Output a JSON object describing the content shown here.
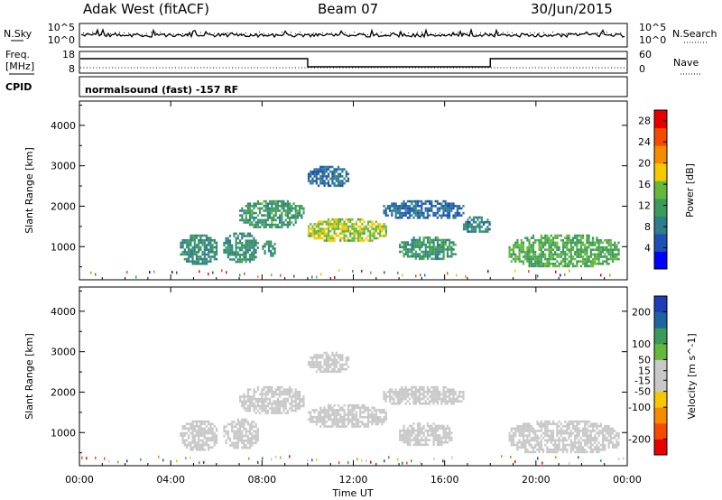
{
  "header": {
    "station": "Adak West (fitACF)",
    "beam": "Beam 07",
    "date": "30/Jun/2015"
  },
  "top_panels": {
    "nsky_label": "N.Sky",
    "nsky_ticks": [
      "10^5",
      "10^0"
    ],
    "nsearch_label": "N.Search",
    "nsearch_ticks": [
      "10^5",
      "10^0"
    ],
    "freq_label": "Freq.",
    "freq_unit": "[MHz]",
    "freq_ticks": [
      "18",
      "8"
    ],
    "nave_label": "Nave",
    "nave_ticks": [
      "60",
      "0"
    ],
    "cpid_label": "CPID",
    "cpid_text": "normalsound (fast) -157 RF"
  },
  "colors": {
    "power_scale": [
      "#0000ff",
      "#1e4fb4",
      "#2e7d8c",
      "#3c9a5a",
      "#64b93c",
      "#f5c800",
      "#f58c00",
      "#f54a00",
      "#e60000"
    ],
    "velocity_scale": [
      "#e60000",
      "#f54a00",
      "#f58c00",
      "#f5c800",
      "#c8c8c8",
      "#c8c8c8",
      "#64b93c",
      "#3c9a5a",
      "#1e64a0",
      "#1e3cb4"
    ]
  },
  "chart_data": [
    {
      "type": "heatmap",
      "name": "power",
      "xlabel": "",
      "ylabel": "Slant Range [km]",
      "x_ticks": [
        "00:00",
        "04:00",
        "08:00",
        "12:00",
        "16:00",
        "20:00",
        "00:00"
      ],
      "y_ticks": [
        1000,
        2000,
        3000,
        4000
      ],
      "xlim": [
        0,
        24
      ],
      "ylim": [
        180,
        4600
      ],
      "colorbar_label": "Power [dB]",
      "colorbar_ticks": [
        4,
        8,
        12,
        16,
        20,
        24,
        28
      ],
      "colorbar_range": [
        0,
        30
      ],
      "regions": [
        {
          "t": [
            4.4,
            6.0
          ],
          "r": [
            600,
            1300
          ],
          "value": 10
        },
        {
          "t": [
            6.3,
            7.8
          ],
          "r": [
            650,
            1350
          ],
          "value": 10
        },
        {
          "t": [
            8.0,
            8.6
          ],
          "r": [
            800,
            1150
          ],
          "value": 10
        },
        {
          "t": [
            7.0,
            9.8
          ],
          "r": [
            1500,
            2150
          ],
          "value": 11
        },
        {
          "t": [
            10.0,
            13.4
          ],
          "r": [
            1150,
            1700
          ],
          "value": 16
        },
        {
          "t": [
            13.3,
            16.8
          ],
          "r": [
            1700,
            2150
          ],
          "value": 7
        },
        {
          "t": [
            14.0,
            16.5
          ],
          "r": [
            700,
            1250
          ],
          "value": 11
        },
        {
          "t": [
            16.8,
            18.0
          ],
          "r": [
            1350,
            1750
          ],
          "value": 9
        },
        {
          "t": [
            18.8,
            23.6
          ],
          "r": [
            500,
            1300
          ],
          "value": 13
        },
        {
          "t": [
            10.0,
            11.8
          ],
          "r": [
            2500,
            3000
          ],
          "value": 7
        }
      ]
    },
    {
      "type": "heatmap",
      "name": "velocity",
      "xlabel": "Time UT",
      "ylabel": "Slant Range [km]",
      "x_ticks": [
        "00:00",
        "04:00",
        "08:00",
        "12:00",
        "16:00",
        "20:00",
        "00:00"
      ],
      "y_ticks": [
        1000,
        2000,
        3000,
        4000
      ],
      "xlim": [
        0,
        24
      ],
      "ylim": [
        180,
        4600
      ],
      "colorbar_label": "Velocity [m s^-1]",
      "colorbar_ticks": [
        -200,
        -100,
        -50,
        -15,
        15,
        50,
        100,
        200
      ],
      "colorbar_range": [
        -250,
        250
      ],
      "regions": [
        {
          "t": [
            4.4,
            6.0
          ],
          "r": [
            600,
            1300
          ],
          "value": 0
        },
        {
          "t": [
            6.3,
            7.8
          ],
          "r": [
            650,
            1350
          ],
          "value": 0
        },
        {
          "t": [
            7.0,
            9.8
          ],
          "r": [
            1500,
            2150
          ],
          "value": 0
        },
        {
          "t": [
            10.0,
            13.4
          ],
          "r": [
            1150,
            1700
          ],
          "value": 0
        },
        {
          "t": [
            13.3,
            16.8
          ],
          "r": [
            1700,
            2150
          ],
          "value": 0
        },
        {
          "t": [
            14.0,
            16.3
          ],
          "r": [
            700,
            1250
          ],
          "value": -40
        },
        {
          "t": [
            18.8,
            23.6
          ],
          "r": [
            500,
            1300
          ],
          "value": 0
        },
        {
          "t": [
            10.0,
            11.8
          ],
          "r": [
            2500,
            3000
          ],
          "value": -30
        }
      ]
    }
  ]
}
